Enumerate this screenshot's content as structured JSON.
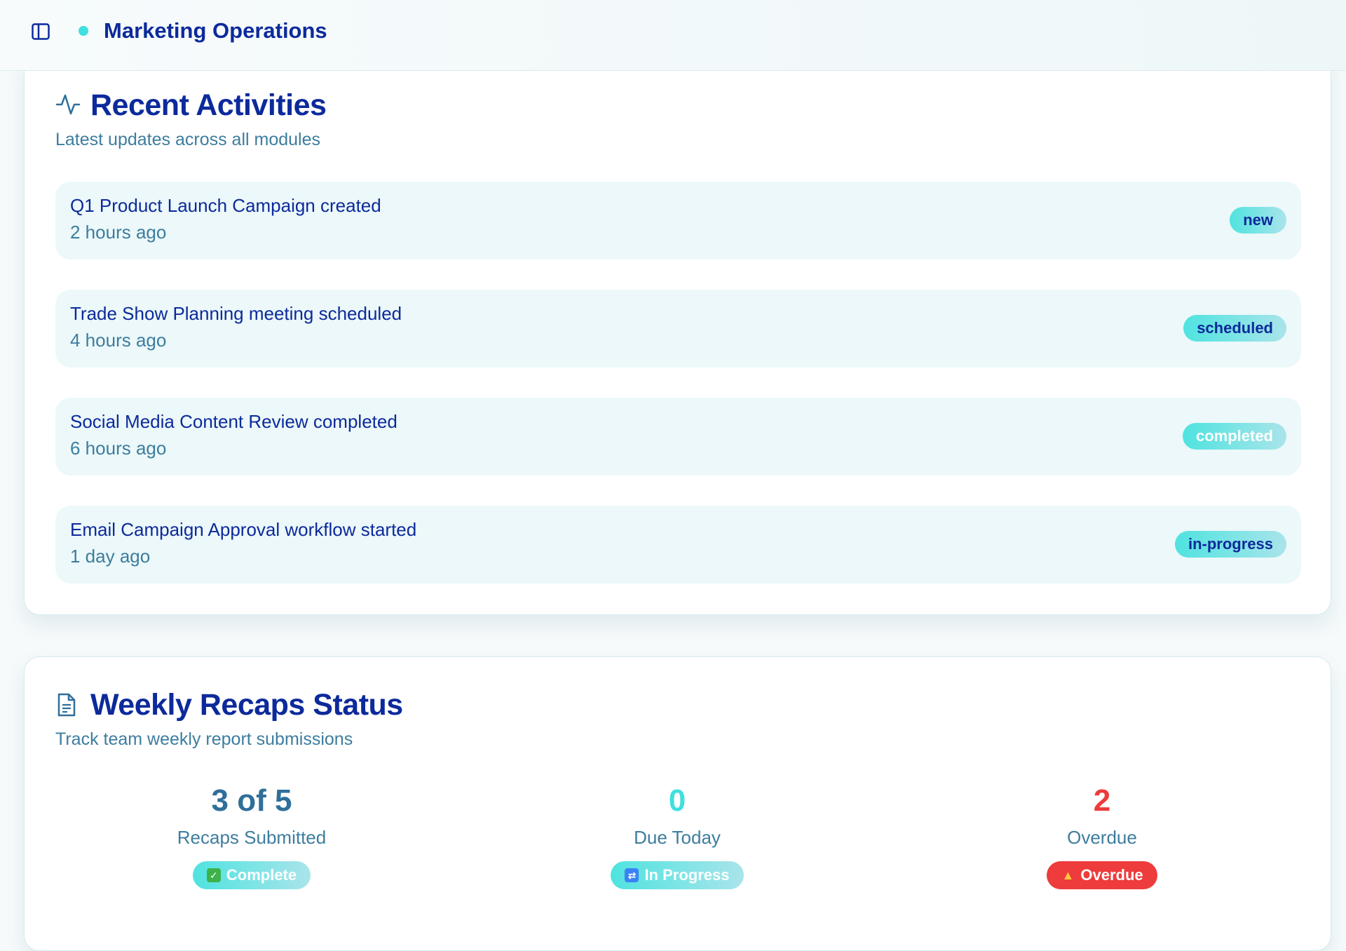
{
  "header": {
    "app_title": "Marketing Operations",
    "status_color": "#3fe0df"
  },
  "activities_card": {
    "icon": "activity-pulse-icon",
    "title": "Recent Activities",
    "subtitle": "Latest updates across all modules",
    "items": [
      {
        "title": "Q1 Product Launch Campaign created",
        "time": "2 hours ago",
        "badge": "new"
      },
      {
        "title": "Trade Show Planning meeting scheduled",
        "time": "4 hours ago",
        "badge": "scheduled"
      },
      {
        "title": "Social Media Content Review completed",
        "time": "6 hours ago",
        "badge": "completed"
      },
      {
        "title": "Email Campaign Approval workflow started",
        "time": "1 day ago",
        "badge": "in-progress"
      }
    ]
  },
  "recaps_card": {
    "icon": "document-icon",
    "title": "Weekly Recaps Status",
    "subtitle": "Track team weekly report submissions",
    "stats": [
      {
        "value": "3 of 5",
        "label": "Recaps Submitted",
        "pill": "Complete",
        "pill_icon": "checkmark-icon",
        "value_color": "#2f6f9a"
      },
      {
        "value": "0",
        "label": "Due Today",
        "pill": "In Progress",
        "pill_icon": "refresh-icon",
        "value_color": "#3fe0df"
      },
      {
        "value": "2",
        "label": "Overdue",
        "pill": "Overdue",
        "pill_icon": "warning-icon",
        "value_color": "#ee3b3b"
      }
    ]
  }
}
